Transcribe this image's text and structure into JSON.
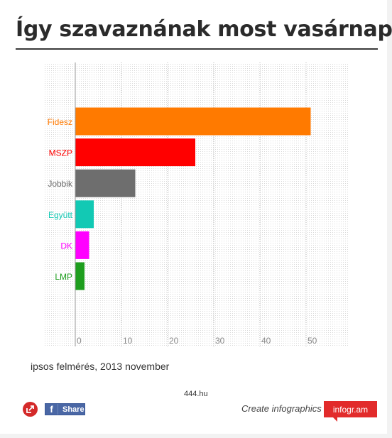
{
  "title": "Így szavaznának most vasárnap",
  "source_note": "ipsos felmérés, 2013 november",
  "site": "444.hu",
  "footer": {
    "share_label": "Share",
    "share_icon": "facebook-icon",
    "logo_icon": "infogram-share-icon",
    "create_label": "Create infographics",
    "brand_label": "infogr.am"
  },
  "colors": {
    "title": "#2b2b2b",
    "brand": "#e22b2b",
    "facebook": "#4a67a5"
  },
  "chart_data": {
    "type": "bar",
    "orientation": "horizontal",
    "categories": [
      "Fidesz",
      "MSZP",
      "Jobbik",
      "Együtt",
      "DK",
      "LMP"
    ],
    "values": [
      51,
      26,
      13,
      4,
      3,
      2
    ],
    "colors": [
      "#ff7a00",
      "#ff0000",
      "#6e6e6e",
      "#12c9b4",
      "#ff00ff",
      "#1e9e1e"
    ],
    "xlim": [
      0,
      60
    ],
    "xticks": [
      0,
      10,
      20,
      30,
      40,
      50
    ],
    "grid": true,
    "legend": "none",
    "title": "",
    "xlabel": "",
    "ylabel": ""
  }
}
